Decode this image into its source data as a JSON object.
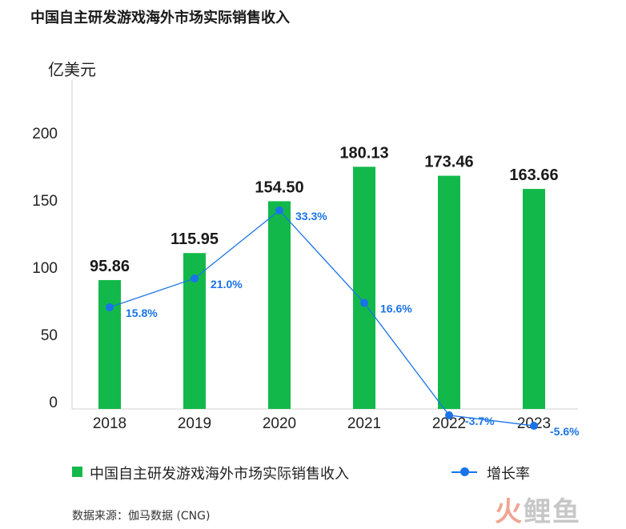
{
  "header": {
    "title": "中国自主研发游戏海外市场实际销售收入"
  },
  "chart_data": {
    "type": "bar",
    "categories": [
      "2018",
      "2019",
      "2020",
      "2021",
      "2022",
      "2023"
    ],
    "series": [
      {
        "name": "中国自主研发游戏海外市场实际销售收入",
        "type": "bar",
        "values": [
          95.86,
          115.95,
          154.5,
          180.13,
          173.46,
          163.66
        ],
        "labels": [
          "95.86",
          "115.95",
          "154.50",
          "180.13",
          "173.46",
          "163.66"
        ],
        "color": "#12b94a"
      },
      {
        "name": "增长率",
        "type": "line",
        "values": [
          15.8,
          21.0,
          33.3,
          16.6,
          -3.7,
          -5.6
        ],
        "labels": [
          "15.8%",
          "21.0%",
          "33.3%",
          "16.6%",
          "-3.7%",
          "-5.6%"
        ],
        "color": "#1a73e8"
      }
    ],
    "ylabel": "亿美元",
    "ylim": [
      0,
      240
    ],
    "yticks": [
      "0",
      "50",
      "100",
      "150",
      "200"
    ],
    "grid": false,
    "legend": "bottom"
  },
  "footer": {
    "source": "数据来源：伽马数据 (CNG)"
  },
  "watermark": {
    "text": "火鲤鱼"
  }
}
